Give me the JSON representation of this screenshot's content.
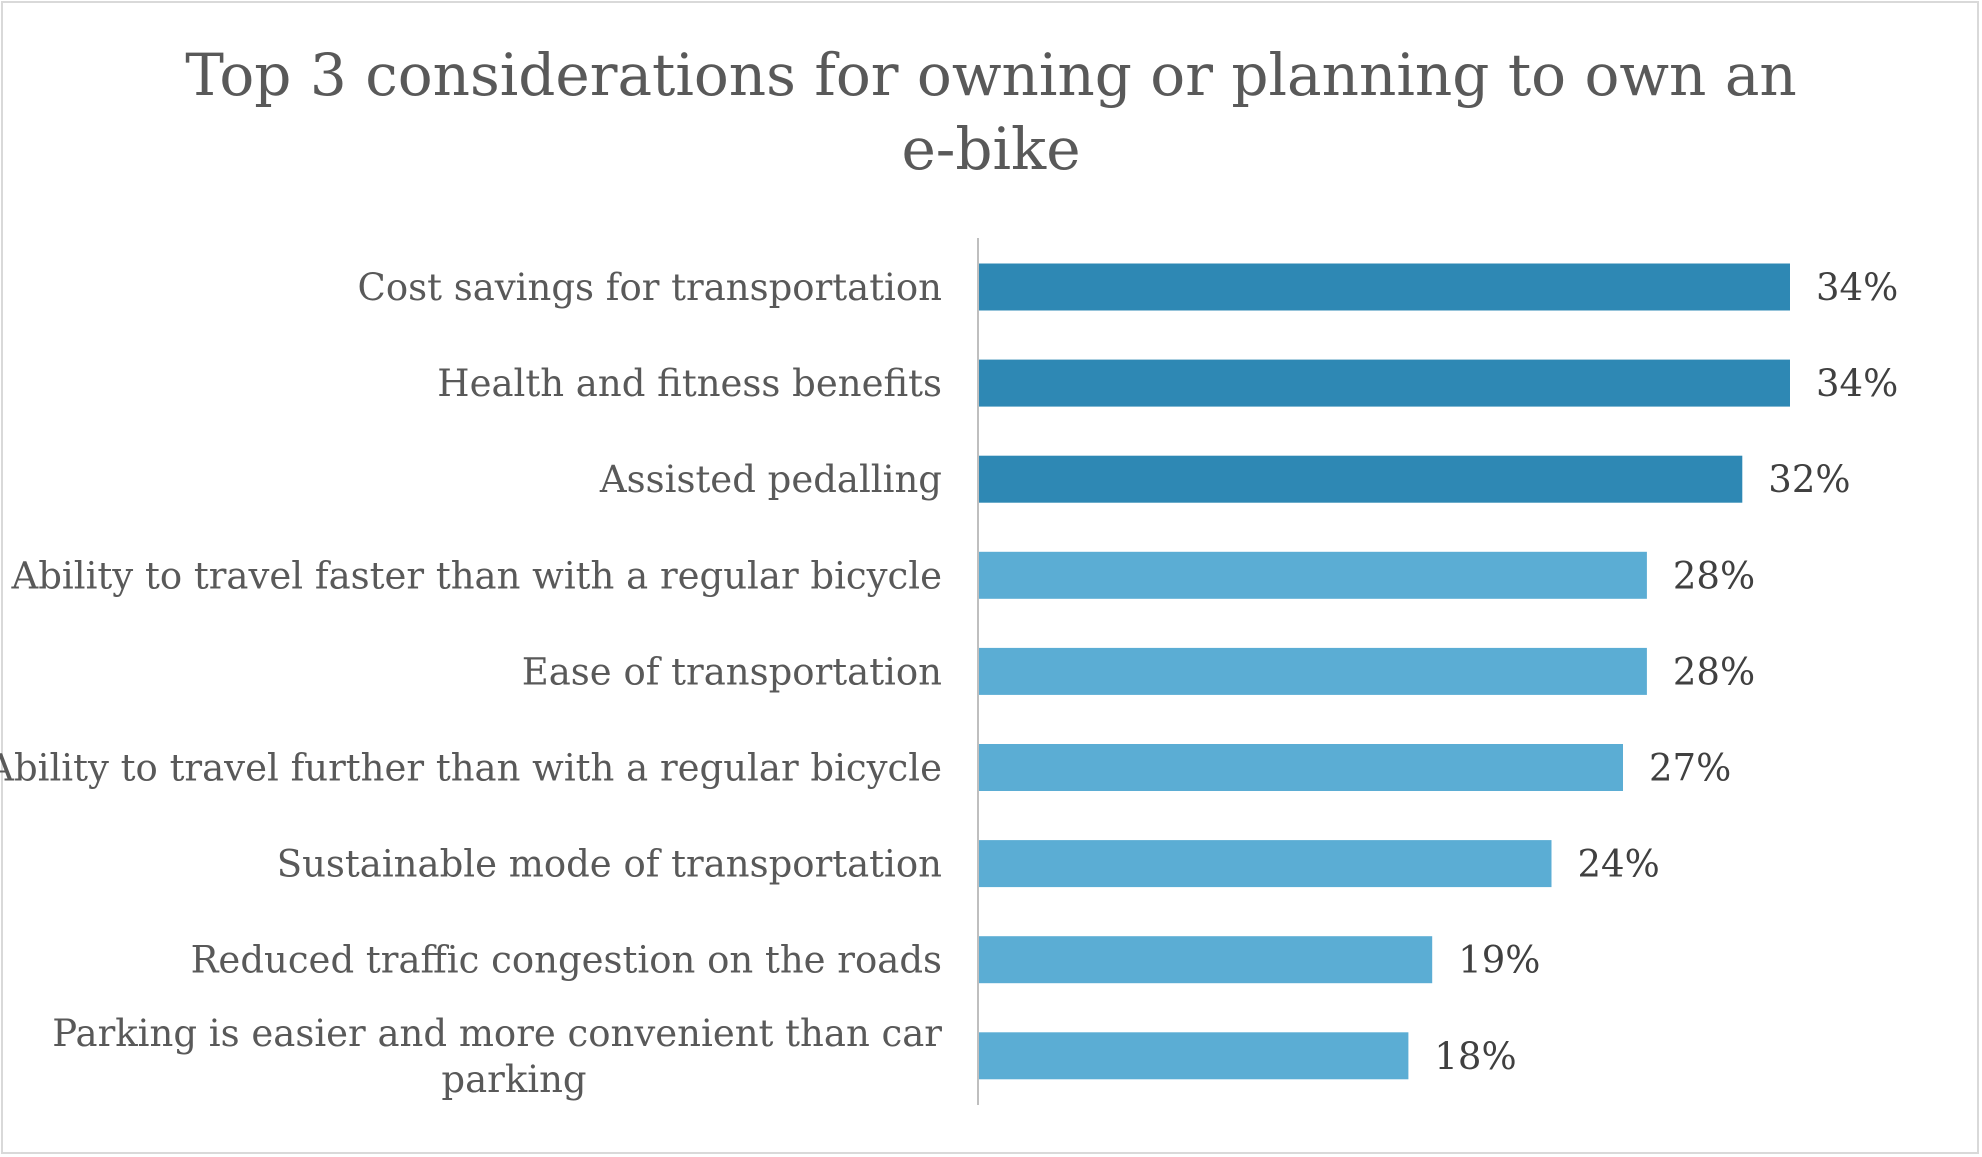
{
  "chart_data": {
    "type": "bar",
    "orientation": "horizontal",
    "title": "Top 3 considerations for owning or planning to own an e-bike",
    "title_lines": [
      "Top 3 considerations for owning or planning to own an",
      "e-bike"
    ],
    "categories": [
      "Cost savings for transportation",
      "Health and fitness benefits",
      "Assisted pedalling",
      "Ability to travel faster than with a regular bicycle",
      "Ease of transportation",
      "Ability to travel further than with a regular bicycle",
      "Sustainable mode of transportation",
      "Reduced traffic congestion on the roads",
      "Parking is easier and more convenient than car parking"
    ],
    "category_lines": [
      [
        "Cost savings for transportation"
      ],
      [
        "Health and fitness benefits"
      ],
      [
        "Assisted pedalling"
      ],
      [
        "Ability to travel faster than with a regular bicycle"
      ],
      [
        "Ease of transportation"
      ],
      [
        "Ability to travel further than with a regular bicycle"
      ],
      [
        "Sustainable mode of transportation"
      ],
      [
        "Reduced traffic congestion on the roads"
      ],
      [
        "Parking is easier and more convenient than car",
        "parking"
      ]
    ],
    "values": [
      34,
      34,
      32,
      28,
      28,
      27,
      24,
      19,
      18
    ],
    "value_labels": [
      "34%",
      "34%",
      "32%",
      "28%",
      "28%",
      "27%",
      "24%",
      "19%",
      "18%"
    ],
    "unit": "%",
    "xlim": [
      0,
      36
    ],
    "grid": false,
    "legend": "none",
    "colors": {
      "top3": "#2e88b4",
      "others": "#5badd4",
      "axis": "#bfbfbf",
      "title": "#595959",
      "label": "#595959",
      "value": "#404040"
    },
    "highlighted_count": 3
  }
}
